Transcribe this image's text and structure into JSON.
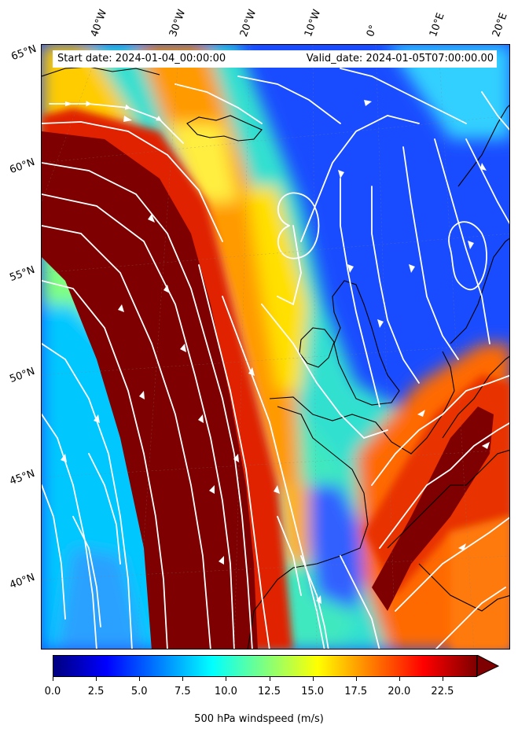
{
  "map": {
    "info": {
      "start": "Start date: 2024-01-04_00:00:00",
      "valid": "Valid_date: 2024-01-05T07:00:00.00"
    },
    "lon_labels": [
      "40°W",
      "30°W",
      "20°W",
      "10°W",
      "0°",
      "10°E",
      "20°E"
    ],
    "lat_labels": [
      "65°N",
      "60°N",
      "55°N",
      "50°N",
      "45°N",
      "40°N"
    ],
    "field": "500 hPa windspeed",
    "overlay": "white streamlines",
    "colors": {
      "jet_core": "#7f0000",
      "low_speed": "#0000ff",
      "streamlines": "#ffffff",
      "coastline": "#000000"
    }
  },
  "colorbar": {
    "ticks": [
      "0.0",
      "2.5",
      "5.0",
      "7.5",
      "10.0",
      "12.5",
      "15.0",
      "17.5",
      "20.0",
      "22.5"
    ],
    "label": "500 hPa windspeed (m/s)",
    "min": 0,
    "max": 24.5,
    "extend": "max",
    "colormap": "jet"
  }
}
